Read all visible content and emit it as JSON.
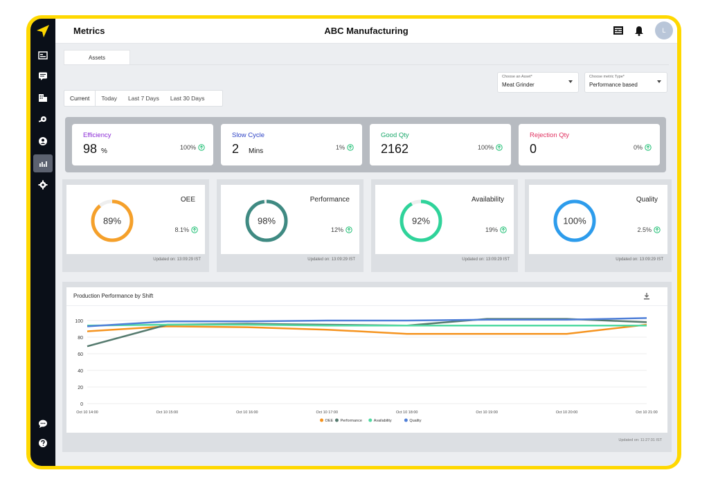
{
  "header": {
    "title": "Metrics",
    "company": "ABC Manufacturing",
    "avatar_initial": "L"
  },
  "tabs": {
    "assets": "Assets"
  },
  "filters": {
    "asset": {
      "label": "Choose an Asset*",
      "value": "Meat Grinder"
    },
    "metric_type": {
      "label": "Choose metric Type*",
      "value": "Performance based"
    }
  },
  "periods": [
    "Current",
    "Today",
    "Last 7 Days",
    "Last 30 Days"
  ],
  "kpis": [
    {
      "name": "Efficiency",
      "value": "98",
      "unit": "%",
      "change": "100%",
      "color": "#8a2ad6"
    },
    {
      "name": "Slow Cycle",
      "value": "2",
      "unit": "Mins",
      "change": "1%",
      "color": "#2a3fc4"
    },
    {
      "name": "Good Qty",
      "value": "2162",
      "unit": "",
      "change": "100%",
      "color": "#1aa86a"
    },
    {
      "name": "Rejection Qty",
      "value": "0",
      "unit": "",
      "change": "0%",
      "color": "#e0305f"
    }
  ],
  "gauges": [
    {
      "name": "OEE",
      "value": "89%",
      "fraction": 0.89,
      "change": "8.1%",
      "color": "#f5a02a",
      "updated": "Updated on: 13:09:29 IST"
    },
    {
      "name": "Performance",
      "value": "98%",
      "fraction": 0.98,
      "change": "12%",
      "color": "#3f8a82",
      "updated": "Updated on: 13:09:29 IST"
    },
    {
      "name": "Availability",
      "value": "92%",
      "fraction": 0.92,
      "change": "19%",
      "color": "#2fd39a",
      "updated": "Updated on: 13:09:29 IST"
    },
    {
      "name": "Quality",
      "value": "100%",
      "fraction": 1.0,
      "change": "2.5%",
      "color": "#2d9cec",
      "updated": "Updated on: 13:09:29 IST"
    }
  ],
  "chart": {
    "title": "Production Performance by Shift",
    "updated": "Updated on: 11:27:31 IST"
  },
  "chart_data": {
    "type": "line",
    "title": "Production Performance by Shift",
    "categories": [
      "Oct 10 14:00",
      "Oct 10 15:00",
      "Oct 10 16:00",
      "Oct 10 17:00",
      "Oct 10 18:00",
      "Oct 10 19:00",
      "Oct 10 20:00",
      "Oct 10 21:00"
    ],
    "ylim": [
      0,
      100
    ],
    "yticks": [
      0,
      20,
      40,
      60,
      80,
      100
    ],
    "legend": "bottom",
    "series": [
      {
        "name": "OEE",
        "color": "#f5931e",
        "values": [
          87,
          93,
          92,
          89,
          84,
          84,
          84,
          95
        ]
      },
      {
        "name": "Performance",
        "color": "#557a6e",
        "values": [
          69,
          95,
          96,
          95,
          94,
          102,
          102,
          98
        ]
      },
      {
        "name": "Availability",
        "color": "#4fd9a0",
        "values": [
          94,
          95,
          95,
          94,
          94,
          94,
          94,
          94
        ]
      },
      {
        "name": "Quality",
        "color": "#4f7fd8",
        "values": [
          93,
          99,
          99,
          100,
          100,
          101,
          101,
          103
        ]
      }
    ]
  }
}
